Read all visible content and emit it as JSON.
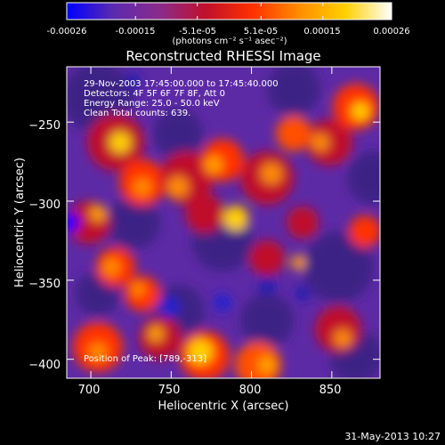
{
  "colorbar": {
    "tick_labels": [
      "-0.00026",
      "-0.00015",
      "-5.1e-05",
      "5.1e-05",
      "0.00015",
      "0.00026"
    ],
    "tick_values": [
      -0.00026,
      -0.00015,
      -5.1e-05,
      5.1e-05,
      0.00015,
      0.00026
    ],
    "range": [
      -0.00026,
      0.00026
    ],
    "unit_label": "(photons cm⁻² s⁻¹ asec⁻²)"
  },
  "chart_data": {
    "type": "heatmap",
    "title": "Reconstructed RHESSI Image",
    "xlabel": "Heliocentric X (arcsec)",
    "ylabel": "Heliocentric Y (arcsec)",
    "xlim": [
      685,
      880
    ],
    "ylim": [
      -412,
      -215
    ],
    "x_ticks": [
      700,
      750,
      800,
      850
    ],
    "y_ticks": [
      -250,
      -300,
      -350,
      -400
    ],
    "x_tick_labels": [
      "700",
      "750",
      "800",
      "850"
    ],
    "y_tick_labels": [
      "−250",
      "−300",
      "−350",
      "−400"
    ],
    "annotations": [
      "29-Nov-2003 17:45:00.000 to 17:45:40.000",
      "Detectors: 4F 5F 6F 7F 8F, Att 0",
      "Energy Range: 25.0 - 50.0 keV",
      "Clean    Total counts: 639."
    ],
    "peak_label": "Position of Peak: [789,-313]",
    "peak_position": [
      789,
      -313
    ],
    "colormap_stops": [
      "#0000ff",
      "#5a2bb0",
      "#8b2b8b",
      "#c0102a",
      "#ff3000",
      "#ff8c00",
      "#ffd000",
      "#ffffff"
    ]
  },
  "footer": {
    "timestamp": "31-May-2013 10:27"
  }
}
